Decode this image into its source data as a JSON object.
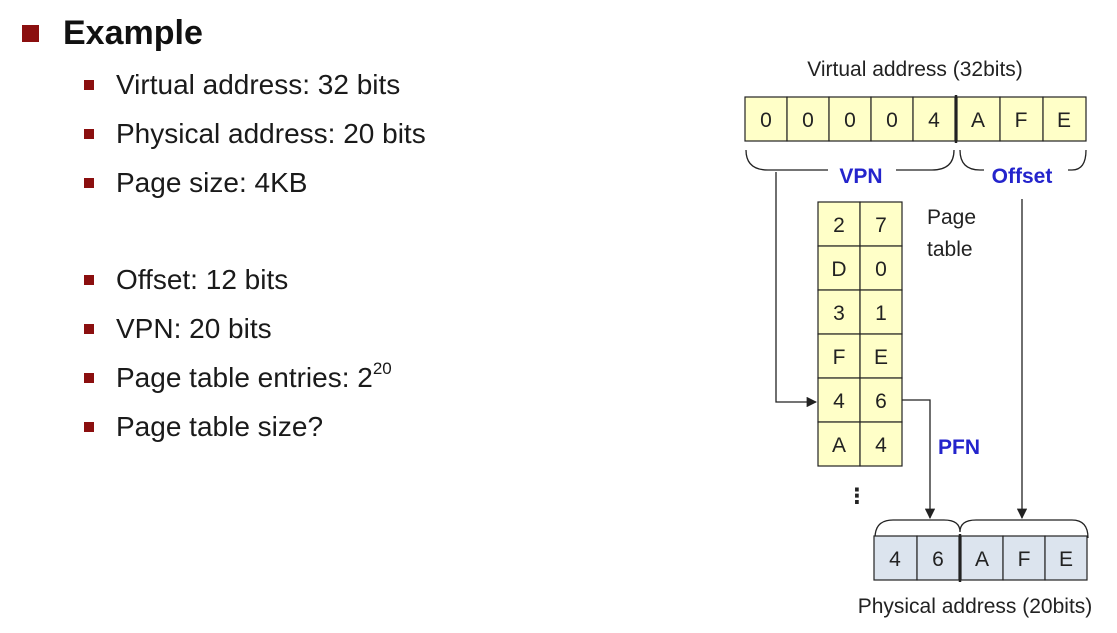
{
  "heading": "Example",
  "bullets_group1": [
    "Virtual address: 32 bits",
    "Physical address: 20 bits",
    "Page size: 4KB"
  ],
  "bullets_group2": [
    {
      "text": "Offset: 12 bits",
      "sup": ""
    },
    {
      "text": "VPN: 20 bits",
      "sup": ""
    },
    {
      "text": "Page table entries: 2",
      "sup": "20"
    },
    {
      "text": "Page table size?",
      "sup": ""
    }
  ],
  "diagram": {
    "virtual_caption": "Virtual address (32bits)",
    "virtual_digits": [
      "0",
      "0",
      "0",
      "0",
      "4",
      "A",
      "F",
      "E"
    ],
    "vpn_label": "VPN",
    "offset_label": "Offset",
    "page_table_label_line1": "Page",
    "page_table_label_line2": "table",
    "page_table_rows": [
      [
        "2",
        "7"
      ],
      [
        "D",
        "0"
      ],
      [
        "3",
        "1"
      ],
      [
        "F",
        "E"
      ],
      [
        "4",
        "6"
      ],
      [
        "A",
        "4"
      ]
    ],
    "ellipsis": "⋮",
    "pfn_label": "PFN",
    "physical_digits": [
      "4",
      "6",
      "A",
      "F",
      "E"
    ],
    "physical_caption": "Physical address (20bits)"
  },
  "colors": {
    "accent": "#8b0f0f",
    "cell_fill": "#ffffc8",
    "physical_fill": "#dce4ee",
    "label_blue": "#2424cc"
  }
}
